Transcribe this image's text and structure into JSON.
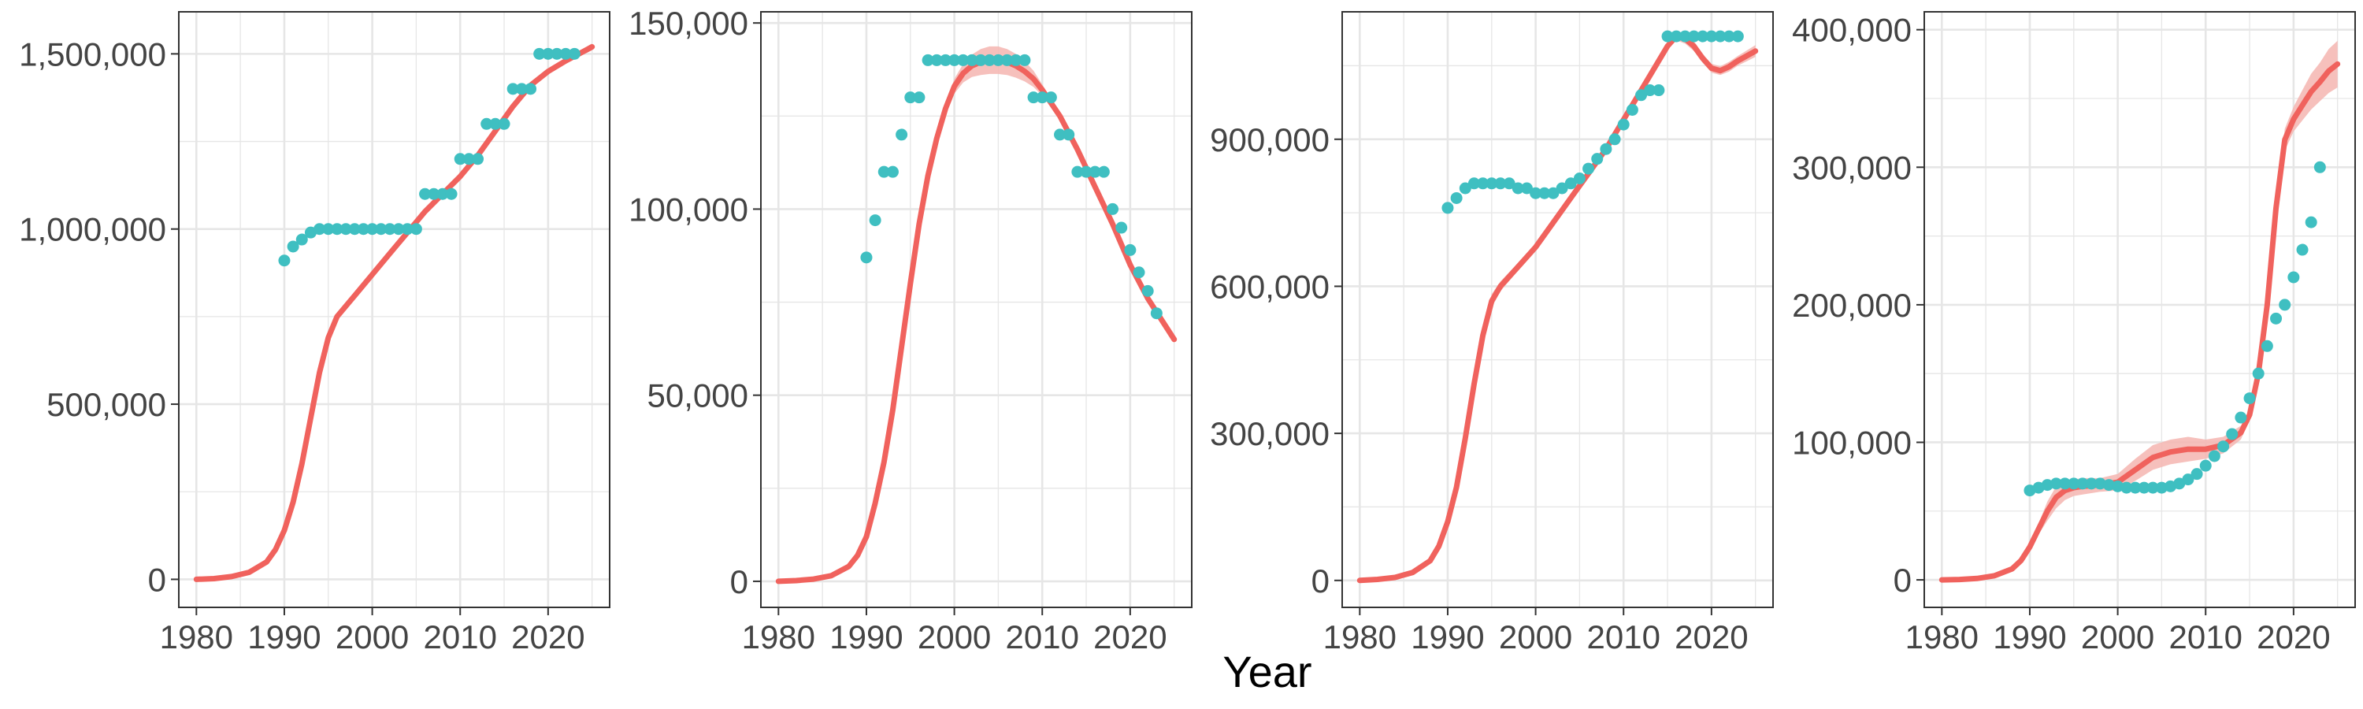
{
  "xlabel": "Year",
  "colors": {
    "fit_line": "#f0625d",
    "ribbon": "#f5b5b0",
    "observed": "#3fbfc1",
    "grid": "#e6e6e6",
    "panel_border": "#333333"
  },
  "chart_data": [
    {
      "type": "line",
      "xlim": [
        1978,
        2027
      ],
      "ylim": [
        -80000,
        1620000
      ],
      "x_ticks": [
        1980,
        1990,
        2000,
        2010,
        2020
      ],
      "x_tick_labels": [
        "1980",
        "1990",
        "2000",
        "2010",
        "2020"
      ],
      "y_ticks": [
        0,
        500000,
        1000000,
        1500000
      ],
      "y_tick_labels": [
        "0",
        "500,000",
        "1,000,000",
        "1,500,000"
      ],
      "fit": {
        "x": [
          1980,
          1982,
          1984,
          1986,
          1988,
          1989,
          1990,
          1991,
          1992,
          1993,
          1994,
          1995,
          1996,
          1998,
          2000,
          2002,
          2004,
          2006,
          2008,
          2010,
          2012,
          2014,
          2016,
          2018,
          2020,
          2022,
          2025
        ],
        "y": [
          0,
          2000,
          8000,
          20000,
          50000,
          85000,
          140000,
          220000,
          330000,
          460000,
          590000,
          690000,
          750000,
          810000,
          870000,
          930000,
          990000,
          1050000,
          1100000,
          1150000,
          1210000,
          1280000,
          1350000,
          1410000,
          1450000,
          1480000,
          1520000
        ],
        "lower": [
          0,
          2000,
          8000,
          20000,
          50000,
          85000,
          140000,
          220000,
          330000,
          460000,
          590000,
          690000,
          750000,
          810000,
          870000,
          930000,
          990000,
          1050000,
          1100000,
          1150000,
          1210000,
          1280000,
          1350000,
          1410000,
          1450000,
          1475000,
          1510000
        ],
        "upper": [
          0,
          2000,
          8000,
          20000,
          50000,
          85000,
          140000,
          220000,
          330000,
          460000,
          590000,
          690000,
          750000,
          810000,
          870000,
          930000,
          990000,
          1050000,
          1100000,
          1150000,
          1210000,
          1280000,
          1350000,
          1410000,
          1450000,
          1485000,
          1530000
        ]
      },
      "observed": {
        "x": [
          1990,
          1991,
          1992,
          1993,
          1994,
          1995,
          1996,
          1997,
          1998,
          1999,
          2000,
          2001,
          2002,
          2003,
          2004,
          2005,
          2006,
          2007,
          2008,
          2009,
          2010,
          2011,
          2012,
          2013,
          2014,
          2015,
          2016,
          2017,
          2018,
          2019,
          2020,
          2021,
          2022,
          2023
        ],
        "y": [
          910000,
          950000,
          970000,
          990000,
          1000000,
          1000000,
          1000000,
          1000000,
          1000000,
          1000000,
          1000000,
          1000000,
          1000000,
          1000000,
          1000000,
          1000000,
          1100000,
          1100000,
          1100000,
          1100000,
          1200000,
          1200000,
          1200000,
          1300000,
          1300000,
          1300000,
          1400000,
          1400000,
          1400000,
          1500000,
          1500000,
          1500000,
          1500000,
          1500000
        ]
      }
    },
    {
      "type": "line",
      "xlim": [
        1978,
        2027
      ],
      "ylim": [
        -7000,
        153000
      ],
      "x_ticks": [
        1980,
        1990,
        2000,
        2010,
        2020
      ],
      "x_tick_labels": [
        "1980",
        "1990",
        "2000",
        "2010",
        "2020"
      ],
      "y_ticks": [
        0,
        50000,
        100000,
        150000
      ],
      "y_tick_labels": [
        "0",
        "50,000",
        "100,000",
        "150,000"
      ],
      "fit": {
        "x": [
          1980,
          1982,
          1984,
          1986,
          1988,
          1989,
          1990,
          1991,
          1992,
          1993,
          1994,
          1995,
          1996,
          1997,
          1998,
          1999,
          2000,
          2001,
          2002,
          2003,
          2004,
          2005,
          2006,
          2007,
          2008,
          2009,
          2010,
          2012,
          2014,
          2016,
          2018,
          2020,
          2022,
          2025
        ],
        "y": [
          0,
          200,
          600,
          1500,
          4000,
          7000,
          12000,
          21000,
          32000,
          46000,
          63000,
          80000,
          96000,
          109000,
          119000,
          127000,
          133000,
          136500,
          138500,
          139500,
          140000,
          140000,
          139500,
          138500,
          137000,
          135000,
          132000,
          125000,
          116000,
          106000,
          96000,
          85000,
          76000,
          65000
        ],
        "lower": [
          0,
          200,
          600,
          1500,
          4000,
          7000,
          12000,
          21000,
          32000,
          46000,
          63000,
          80000,
          96000,
          109000,
          119000,
          126000,
          131000,
          134000,
          135500,
          136000,
          136300,
          136300,
          136000,
          135300,
          134300,
          132800,
          130500,
          124000,
          115000,
          105000,
          95000,
          84000,
          75000,
          64000
        ],
        "upper": [
          0,
          200,
          600,
          1500,
          4000,
          7000,
          12000,
          21000,
          32000,
          46000,
          63000,
          80000,
          96000,
          109000,
          119000,
          128000,
          135000,
          139000,
          141500,
          143000,
          143700,
          143700,
          143000,
          141700,
          139700,
          137200,
          133500,
          126000,
          117000,
          107000,
          97000,
          86000,
          77000,
          66000
        ]
      },
      "observed": {
        "x": [
          1990,
          1991,
          1992,
          1993,
          1994,
          1995,
          1996,
          1997,
          1998,
          1999,
          2000,
          2001,
          2002,
          2003,
          2004,
          2005,
          2006,
          2007,
          2008,
          2009,
          2010,
          2011,
          2012,
          2013,
          2014,
          2015,
          2016,
          2017,
          2018,
          2019,
          2020,
          2021,
          2022,
          2023
        ],
        "y": [
          87000,
          97000,
          110000,
          110000,
          120000,
          130000,
          130000,
          140000,
          140000,
          140000,
          140000,
          140000,
          140000,
          140000,
          140000,
          140000,
          140000,
          140000,
          140000,
          130000,
          130000,
          130000,
          120000,
          120000,
          110000,
          110000,
          110000,
          110000,
          100000,
          95000,
          89000,
          83000,
          78000,
          72000
        ]
      }
    },
    {
      "type": "line",
      "xlim": [
        1978,
        2027
      ],
      "ylim": [
        -55000,
        1160000
      ],
      "x_ticks": [
        1980,
        1990,
        2000,
        2010,
        2020
      ],
      "x_tick_labels": [
        "1980",
        "1990",
        "2000",
        "2010",
        "2020"
      ],
      "y_ticks": [
        0,
        300000,
        600000,
        900000
      ],
      "y_tick_labels": [
        "0",
        "300,000",
        "600,000",
        "900,000"
      ],
      "fit": {
        "x": [
          1980,
          1982,
          1984,
          1986,
          1988,
          1989,
          1990,
          1991,
          1992,
          1993,
          1994,
          1995,
          1996,
          1998,
          2000,
          2002,
          2004,
          2006,
          2008,
          2010,
          2012,
          2014,
          2015,
          2016,
          2017,
          2018,
          2019,
          2020,
          2021,
          2022,
          2023,
          2025
        ],
        "y": [
          0,
          2000,
          6000,
          16000,
          40000,
          70000,
          120000,
          190000,
          290000,
          400000,
          500000,
          570000,
          600000,
          640000,
          680000,
          730000,
          780000,
          830000,
          880000,
          940000,
          1000000,
          1060000,
          1090000,
          1110000,
          1105000,
          1090000,
          1065000,
          1045000,
          1040000,
          1048000,
          1060000,
          1080000
        ],
        "lower": [
          0,
          2000,
          6000,
          16000,
          40000,
          70000,
          120000,
          185000,
          280000,
          385000,
          485000,
          556000,
          590000,
          632000,
          674000,
          725000,
          776000,
          826000,
          876000,
          936000,
          996000,
          1055000,
          1084000,
          1102000,
          1095000,
          1080000,
          1056000,
          1036000,
          1031000,
          1038000,
          1050000,
          1068000
        ],
        "upper": [
          0,
          2000,
          6000,
          16000,
          40000,
          70000,
          120000,
          195000,
          300000,
          415000,
          515000,
          584000,
          610000,
          648000,
          686000,
          735000,
          784000,
          834000,
          884000,
          944000,
          1004000,
          1065000,
          1096000,
          1118000,
          1115000,
          1100000,
          1074000,
          1054000,
          1049000,
          1058000,
          1070000,
          1092000
        ]
      },
      "observed": {
        "x": [
          1990,
          1991,
          1992,
          1993,
          1994,
          1995,
          1996,
          1997,
          1998,
          1999,
          2000,
          2001,
          2002,
          2003,
          2004,
          2005,
          2006,
          2007,
          2008,
          2009,
          2010,
          2011,
          2012,
          2013,
          2014,
          2015,
          2016,
          2017,
          2018,
          2019,
          2020,
          2021,
          2022,
          2023
        ],
        "y": [
          760000,
          780000,
          800000,
          810000,
          810000,
          810000,
          810000,
          810000,
          800000,
          800000,
          790000,
          790000,
          790000,
          800000,
          810000,
          820000,
          840000,
          860000,
          880000,
          900000,
          930000,
          960000,
          990000,
          1000000,
          1000000,
          1110000,
          1110000,
          1110000,
          1110000,
          1110000,
          1110000,
          1110000,
          1110000,
          1110000
        ]
      }
    },
    {
      "type": "line",
      "xlim": [
        1978,
        2027
      ],
      "ylim": [
        -20000,
        413000
      ],
      "x_ticks": [
        1980,
        1990,
        2000,
        2010,
        2020
      ],
      "x_tick_labels": [
        "1980",
        "1990",
        "2000",
        "2010",
        "2020"
      ],
      "y_ticks": [
        0,
        100000,
        200000,
        300000,
        400000
      ],
      "y_tick_labels": [
        "0",
        "100,000",
        "200,000",
        "300,000",
        "400,000"
      ],
      "fit": {
        "x": [
          1980,
          1982,
          1984,
          1986,
          1988,
          1989,
          1990,
          1991,
          1992,
          1993,
          1994,
          1995,
          1996,
          1998,
          2000,
          2002,
          2004,
          2006,
          2008,
          2010,
          2012,
          2014,
          2015,
          2016,
          2017,
          2018,
          2019,
          2020,
          2021,
          2022,
          2023,
          2024,
          2025
        ],
        "y": [
          0,
          300,
          1000,
          3000,
          8000,
          14000,
          24000,
          37000,
          50000,
          60000,
          65000,
          67000,
          68000,
          69000,
          71000,
          80000,
          89000,
          93000,
          95000,
          95000,
          98000,
          107000,
          120000,
          150000,
          200000,
          270000,
          320000,
          335000,
          345000,
          355000,
          362000,
          370000,
          375000
        ],
        "lower": [
          0,
          300,
          1000,
          3000,
          8000,
          14000,
          23000,
          33000,
          43000,
          52000,
          58000,
          61000,
          62000,
          64000,
          65000,
          72000,
          80000,
          84000,
          86000,
          88000,
          92000,
          102000,
          116000,
          146000,
          196000,
          264000,
          312000,
          326000,
          334000,
          342000,
          348000,
          354000,
          358000
        ],
        "upper": [
          0,
          300,
          1000,
          3000,
          8000,
          14000,
          25000,
          41000,
          57000,
          68000,
          72000,
          73000,
          74000,
          74000,
          77000,
          88000,
          98000,
          102000,
          104000,
          102000,
          104000,
          112000,
          124000,
          154000,
          204000,
          276000,
          328000,
          344000,
          356000,
          368000,
          376000,
          386000,
          392000
        ]
      },
      "observed": {
        "x": [
          1990,
          1991,
          1992,
          1993,
          1994,
          1995,
          1996,
          1997,
          1998,
          1999,
          2000,
          2001,
          2002,
          2003,
          2004,
          2005,
          2006,
          2007,
          2008,
          2009,
          2010,
          2011,
          2012,
          2013,
          2014,
          2015,
          2016,
          2017,
          2018,
          2019,
          2020,
          2021,
          2022,
          2023
        ],
        "y": [
          65000,
          67000,
          69000,
          70000,
          70000,
          70000,
          70000,
          70000,
          70000,
          69000,
          68000,
          67000,
          67000,
          67000,
          67000,
          67000,
          68000,
          70000,
          73000,
          77000,
          83000,
          90000,
          97000,
          106000,
          118000,
          132000,
          150000,
          170000,
          190000,
          200000,
          220000,
          240000,
          260000,
          300000
        ]
      }
    }
  ]
}
